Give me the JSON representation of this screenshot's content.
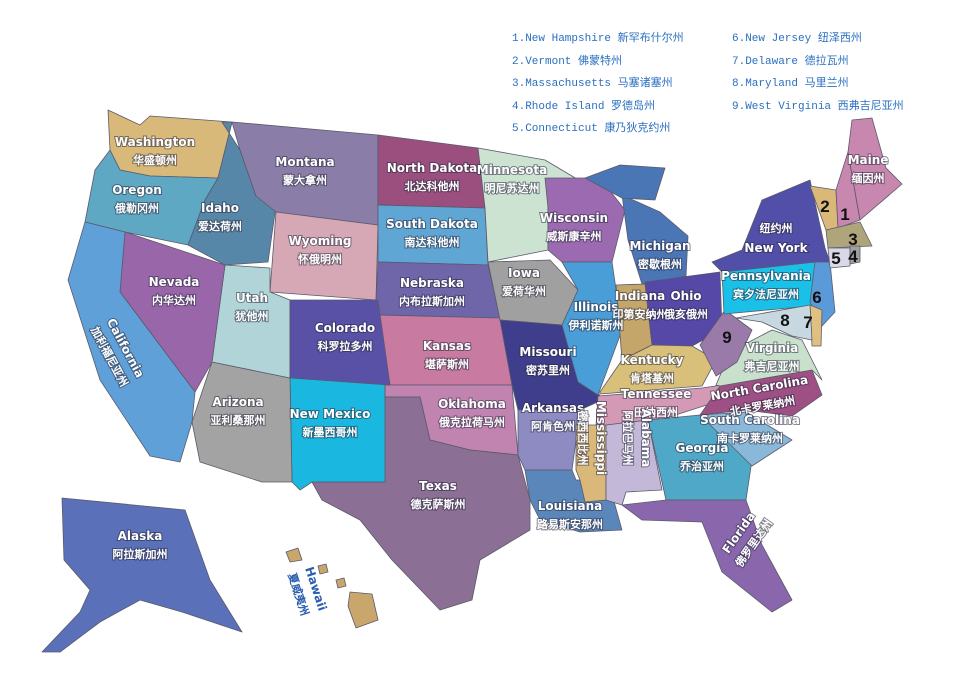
{
  "legend": {
    "col1": [
      {
        "num": "1.",
        "name": "New Hampshire",
        "name_zh": "新罕布什尔州"
      },
      {
        "num": "2.",
        "name": "Vermont",
        "name_zh": "佛蒙特州"
      },
      {
        "num": "3.",
        "name": "Massachusetts",
        "name_zh": "马塞诸塞州"
      },
      {
        "num": "4.",
        "name": "Rhode Island",
        "name_zh": "罗德岛州"
      },
      {
        "num": "5.",
        "name": "Connecticut",
        "name_zh": "康乃狄克约州"
      }
    ],
    "col2": [
      {
        "num": "6.",
        "name": "New Jersey",
        "name_zh": "纽泽西州"
      },
      {
        "num": "7.",
        "name": "Delaware",
        "name_zh": "德拉瓦州"
      },
      {
        "num": "8.",
        "name": "Maryland",
        "name_zh": "马里兰州"
      },
      {
        "num": "9.",
        "name": "West Virginia",
        "name_zh": "西弗吉尼亚州"
      }
    ]
  },
  "states": [
    {
      "id": "wa",
      "name": "Washington",
      "name_zh": "华盛顿州",
      "color": "#d9b97a"
    },
    {
      "id": "or",
      "name": "Oregon",
      "name_zh": "俄勒冈州",
      "color": "#5fa8c4"
    },
    {
      "id": "id",
      "name": "Idaho",
      "name_zh": "爱达荷州",
      "color": "#5787a8"
    },
    {
      "id": "mt",
      "name": "Montana",
      "name_zh": "蒙大拿州",
      "color": "#8a7ea8"
    },
    {
      "id": "wy",
      "name": "Wyoming",
      "name_zh": "怀俄明州",
      "color": "#d6a8b5"
    },
    {
      "id": "nd",
      "name": "North Dakota",
      "name_zh": "北达科他州",
      "color": "#9a4f7f"
    },
    {
      "id": "sd",
      "name": "South Dakota",
      "name_zh": "南达科他州",
      "color": "#5fa6d4"
    },
    {
      "id": "mn",
      "name": "Minnesota",
      "name_zh": "明尼苏达州",
      "color": "#cce3d2"
    },
    {
      "id": "ne",
      "name": "Nebraska",
      "name_zh": "内布拉斯加州",
      "color": "#6e66a9"
    },
    {
      "id": "ks",
      "name": "Kansas",
      "name_zh": "堪萨斯州",
      "color": "#c87aa0"
    },
    {
      "id": "ok",
      "name": "Oklahoma",
      "name_zh": "俄克拉荷马州",
      "color": "#c184b0"
    },
    {
      "id": "tx",
      "name": "Texas",
      "name_zh": "德克萨斯州",
      "color": "#8c6f95"
    },
    {
      "id": "nm",
      "name": "New Mexico",
      "name_zh": "新墨西哥州",
      "color": "#1ab8e0"
    },
    {
      "id": "az",
      "name": "Arizona",
      "name_zh": "亚利桑那州",
      "color": "#a3a3a3"
    },
    {
      "id": "ut",
      "name": "Utah",
      "name_zh": "犹他州",
      "color": "#b0d4d8"
    },
    {
      "id": "nv",
      "name": "Nevada",
      "name_zh": "内华达州",
      "color": "#9966aa"
    },
    {
      "id": "ca",
      "name": "California",
      "name_zh": "加利福尼亚州",
      "color": "#5fa0d8"
    },
    {
      "id": "co",
      "name": "Colorado",
      "name_zh": "科罗拉多州",
      "color": "#5951a6"
    },
    {
      "id": "ia",
      "name": "Iowa",
      "name_zh": "爱荷华州",
      "color": "#a0a0a0"
    },
    {
      "id": "mo",
      "name": "Missouri",
      "name_zh": "密苏里州",
      "color": "#3f3e8c"
    },
    {
      "id": "ar",
      "name": "Arkansas",
      "name_zh": "阿肯色州",
      "color": "#8e8ac2"
    },
    {
      "id": "la",
      "name": "Louisiana",
      "name_zh": "路易斯安那州",
      "color": "#5a86ba"
    },
    {
      "id": "wi",
      "name": "Wisconsin",
      "name_zh": "威斯康辛州",
      "color": "#9c6ab0"
    },
    {
      "id": "il",
      "name": "Illinois",
      "name_zh": "伊利诺斯州",
      "color": "#4a9ed8"
    },
    {
      "id": "mi",
      "name": "Michigan",
      "name_zh": "密歇根州",
      "color": "#4a76b6"
    },
    {
      "id": "in",
      "name": "Indiana",
      "name_zh": "印第安纳州",
      "color": "#c4a56a"
    },
    {
      "id": "oh",
      "name": "Ohio",
      "name_zh": "俄亥俄州",
      "color": "#5548a6"
    },
    {
      "id": "ky",
      "name": "Kentucky",
      "name_zh": "肯塔基州",
      "color": "#d9c07a"
    },
    {
      "id": "tn",
      "name": "Tennessee",
      "name_zh": "田纳西州",
      "color": "#d49ab5"
    },
    {
      "id": "ms",
      "name": "Mississippi",
      "name_zh": "密西西比州",
      "color": "#d9b879"
    },
    {
      "id": "al",
      "name": "Alabama",
      "name_zh": "阿拉巴马州",
      "color": "#c3b8d8"
    },
    {
      "id": "ga",
      "name": "Georgia",
      "name_zh": "乔治亚州",
      "color": "#4fa8c7"
    },
    {
      "id": "fl",
      "name": "Florida",
      "name_zh": "佛罗里达州",
      "color": "#8a67ad"
    },
    {
      "id": "sc",
      "name": "South Carolina",
      "name_zh": "南卡罗莱纳州",
      "color": "#8ab8d8"
    },
    {
      "id": "nc",
      "name": "North Carolina",
      "name_zh": "北卡罗莱纳州",
      "color": "#9e4f84"
    },
    {
      "id": "va",
      "name": "Virginia",
      "name_zh": "弗吉尼亚州",
      "color": "#c8e0cc"
    },
    {
      "id": "wv",
      "name": "9",
      "color": "#9a7aa8"
    },
    {
      "id": "pa",
      "name": "Pennsylvania",
      "name_zh": "宾夕法尼亚州",
      "color": "#1ac0e8"
    },
    {
      "id": "ny",
      "name": "New York",
      "name_zh": "纽约州",
      "color": "#524fa8"
    },
    {
      "id": "nj",
      "name": "6",
      "color": "#5a9ad8"
    },
    {
      "id": "de",
      "name": "7",
      "color": "#e0c080"
    },
    {
      "id": "md",
      "name": "8",
      "color": "#c8d8e0"
    },
    {
      "id": "vt",
      "name": "2",
      "color": "#d9b879"
    },
    {
      "id": "nh",
      "name": "1",
      "color": "#c887ae"
    },
    {
      "id": "me",
      "name": "Maine",
      "name_zh": "缅因州",
      "color": "#c887ae"
    },
    {
      "id": "ma",
      "name": "3",
      "color": "#b0a57a"
    },
    {
      "id": "ct",
      "name": "5",
      "color": "#d8d8e8"
    },
    {
      "id": "ri",
      "name": "4",
      "color": "#a0a0a0"
    },
    {
      "id": "ak",
      "name": "Alaska",
      "name_zh": "阿拉斯加州",
      "color": "#5a70b8"
    },
    {
      "id": "hi",
      "name": "Hawaii",
      "name_zh": "夏威夷州",
      "color": "#c9a66b"
    }
  ]
}
